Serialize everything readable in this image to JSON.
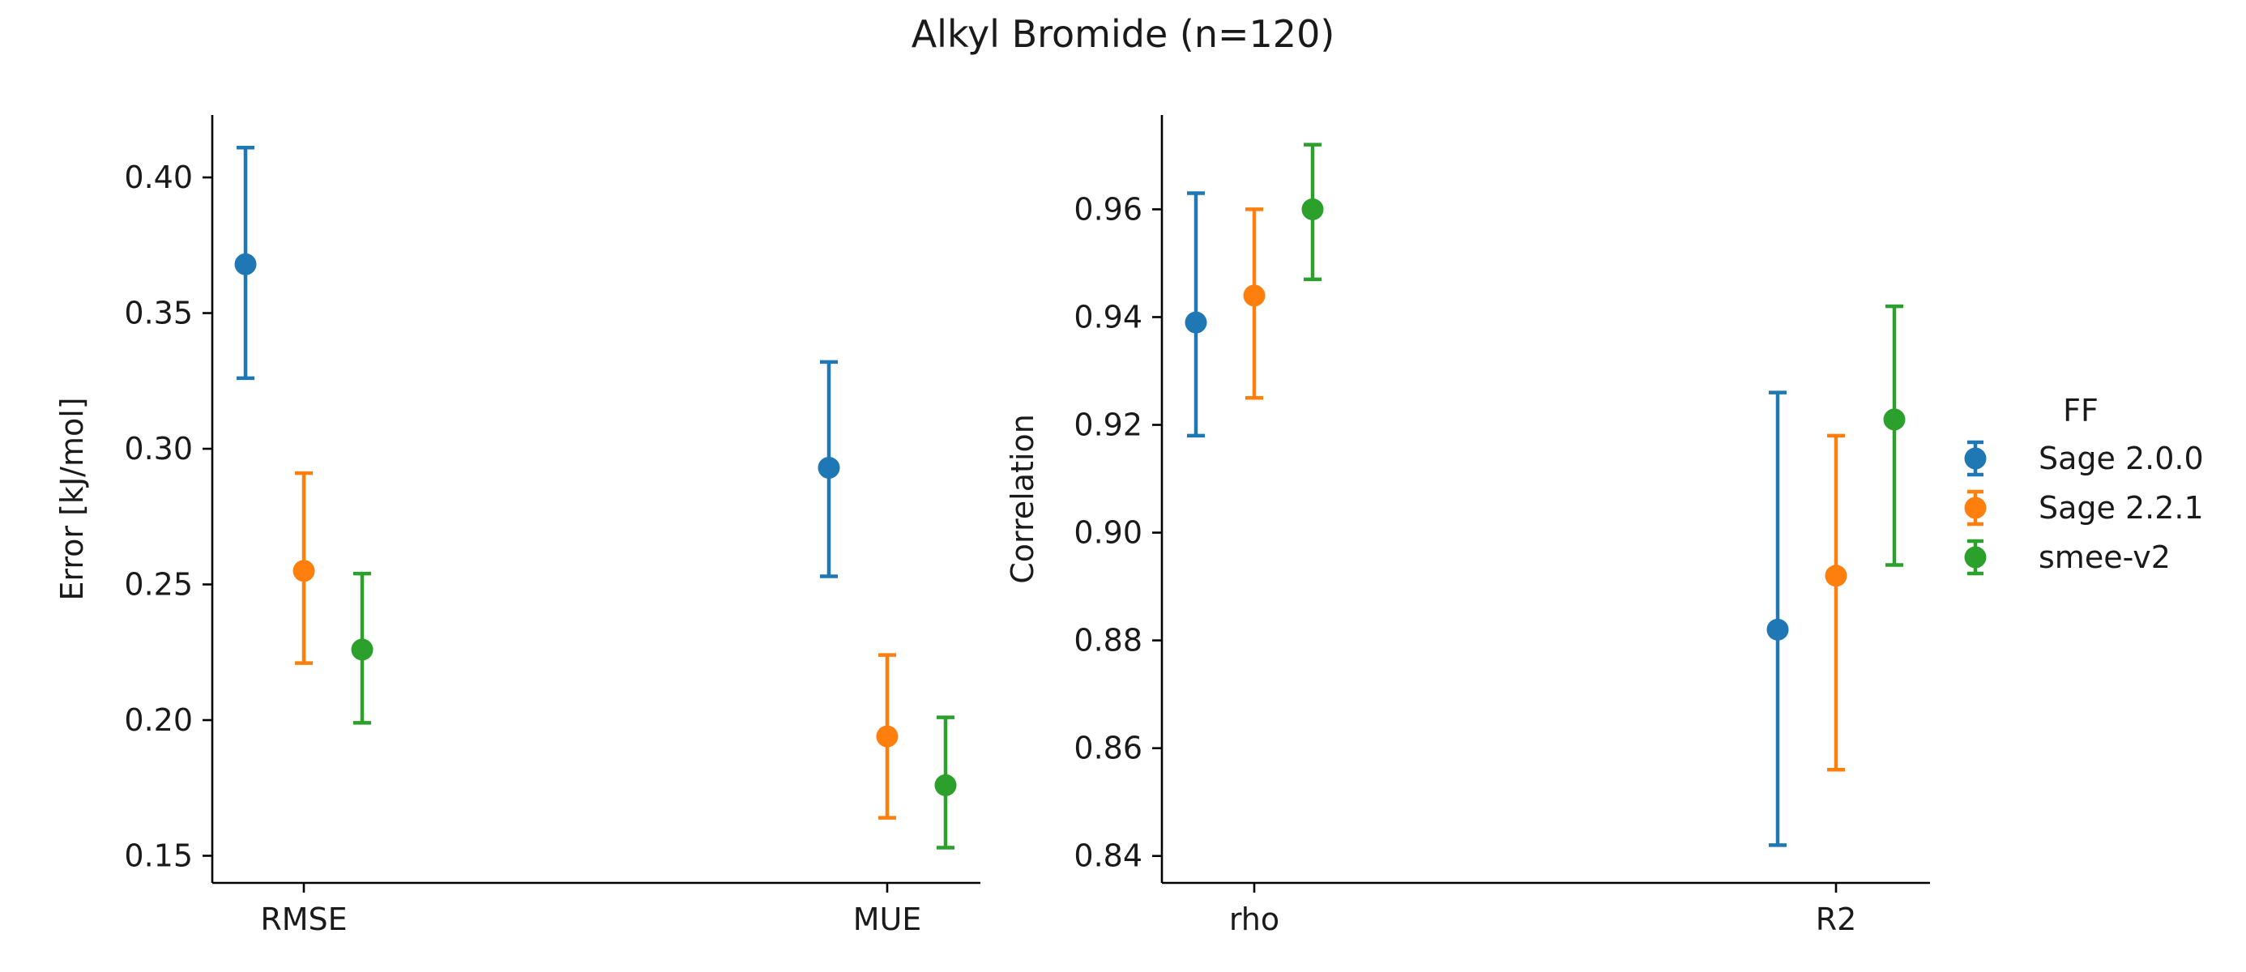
{
  "chart_data": {
    "title": "Alkyl Bromide (n=120)",
    "type": "scatter",
    "legend": {
      "title": "FF",
      "placement": "right",
      "entries": [
        {
          "name": "Sage 2.0.0",
          "color": "#1f77b4"
        },
        {
          "name": "Sage 2.2.1",
          "color": "#ff7f0e"
        },
        {
          "name": "smee-v2",
          "color": "#2ca02c"
        }
      ]
    },
    "panels": [
      {
        "ylabel": "Error [kJ/mol]",
        "xlabel": "",
        "categories": [
          "RMSE",
          "MUE"
        ],
        "ylim": [
          0.14,
          0.423
        ],
        "yticks": [
          "0.15",
          "0.20",
          "0.25",
          "0.30",
          "0.35",
          "0.40"
        ],
        "series": [
          {
            "name": "Sage 2.0.0",
            "color": "#1f77b4",
            "values": [
              0.368,
              0.293
            ],
            "lower": [
              0.326,
              0.253
            ],
            "upper": [
              0.411,
              0.332
            ]
          },
          {
            "name": "Sage 2.2.1",
            "color": "#ff7f0e",
            "values": [
              0.255,
              0.194
            ],
            "lower": [
              0.221,
              0.164
            ],
            "upper": [
              0.291,
              0.224
            ]
          },
          {
            "name": "smee-v2",
            "color": "#2ca02c",
            "values": [
              0.226,
              0.176
            ],
            "lower": [
              0.199,
              0.153
            ],
            "upper": [
              0.254,
              0.201
            ]
          }
        ]
      },
      {
        "ylabel": "Correlation",
        "xlabel": "",
        "categories": [
          "rho",
          "R2"
        ],
        "ylim": [
          0.835,
          0.9775
        ],
        "yticks": [
          "0.84",
          "0.86",
          "0.88",
          "0.90",
          "0.92",
          "0.94",
          "0.96"
        ],
        "series": [
          {
            "name": "Sage 2.0.0",
            "color": "#1f77b4",
            "values": [
              0.939,
              0.882
            ],
            "lower": [
              0.918,
              0.842
            ],
            "upper": [
              0.963,
              0.926
            ]
          },
          {
            "name": "Sage 2.2.1",
            "color": "#ff7f0e",
            "values": [
              0.944,
              0.892
            ],
            "lower": [
              0.925,
              0.856
            ],
            "upper": [
              0.96,
              0.918
            ]
          },
          {
            "name": "smee-v2",
            "color": "#2ca02c",
            "values": [
              0.96,
              0.921
            ],
            "lower": [
              0.947,
              0.894
            ],
            "upper": [
              0.972,
              0.942
            ]
          }
        ]
      }
    ]
  }
}
